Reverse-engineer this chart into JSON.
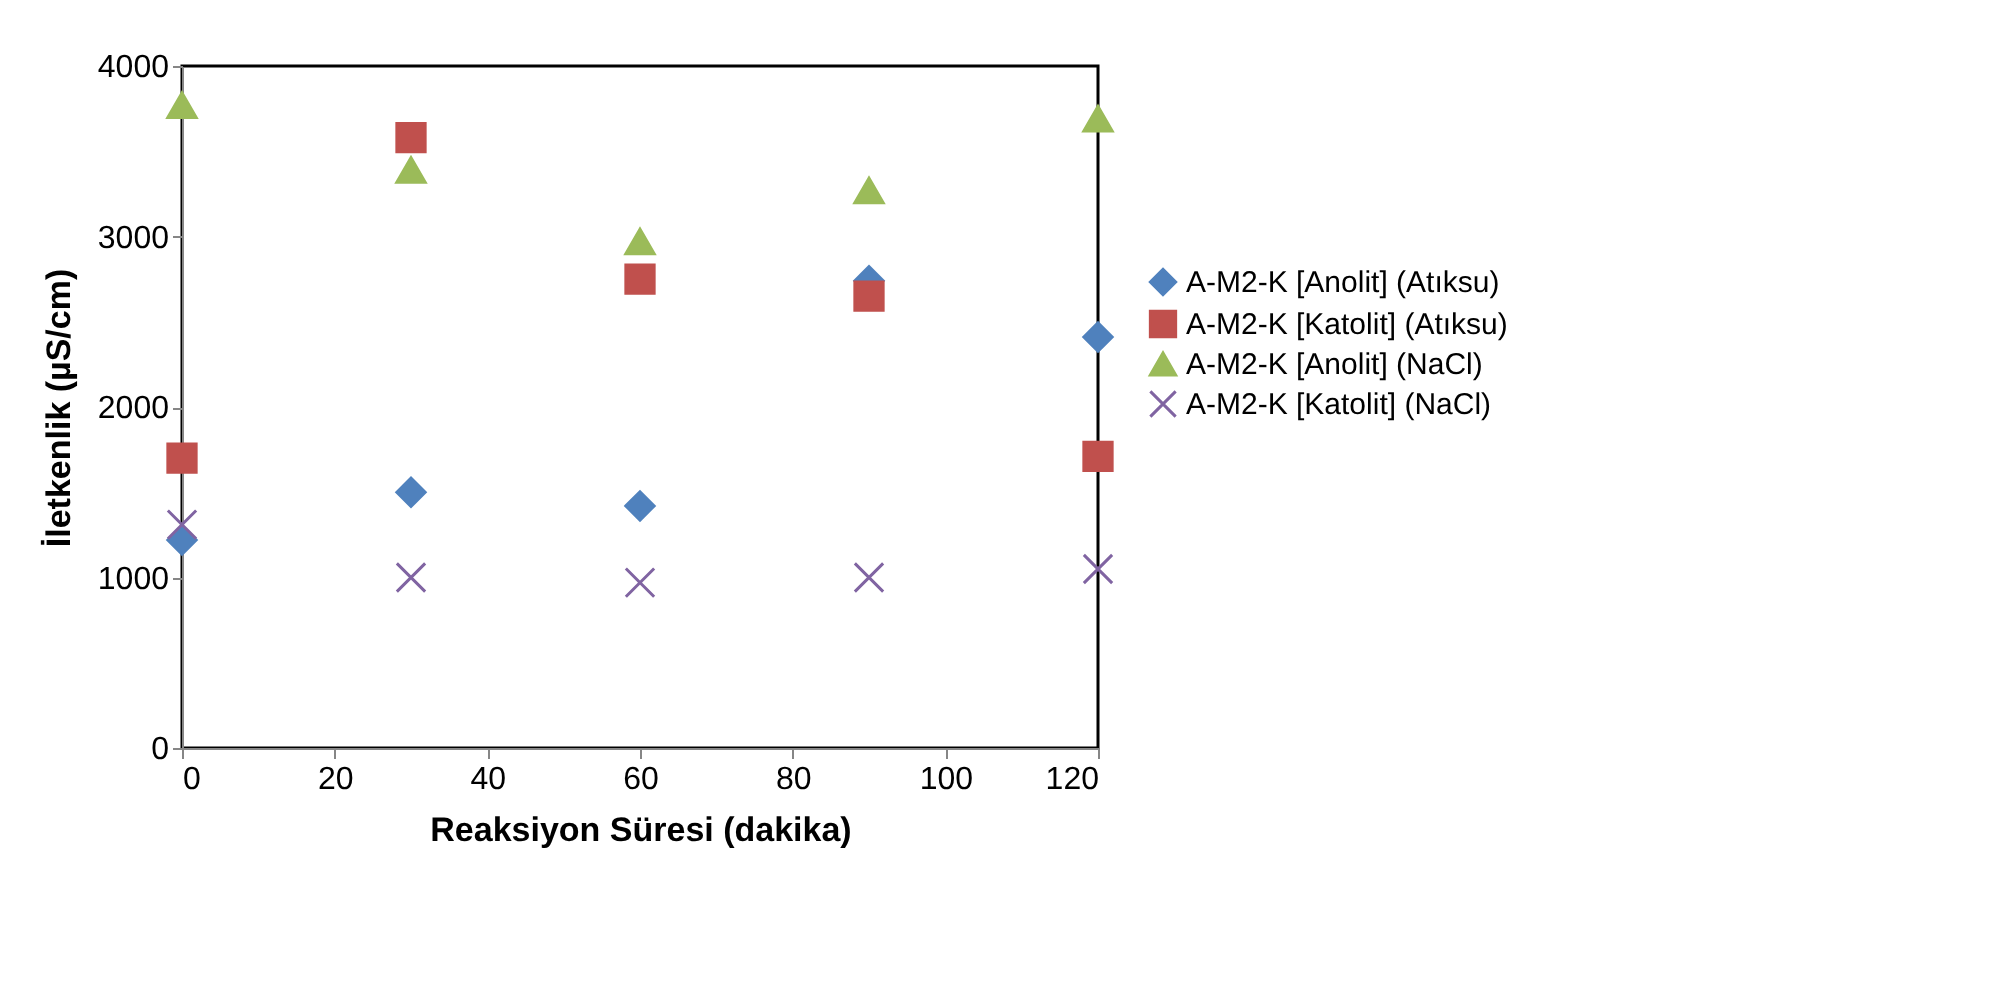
{
  "chart_data": {
    "type": "scatter",
    "xlabel": "Reaksiyon Süresi (dakika)",
    "ylabel": "İletkenlik (µS/cm)",
    "x": [
      0,
      30,
      60,
      90,
      120
    ],
    "xlim": [
      0,
      120
    ],
    "xticks": [
      0,
      20,
      40,
      60,
      80,
      100,
      120
    ],
    "ylim": [
      0,
      4000
    ],
    "yticks": [
      0,
      1000,
      2000,
      3000,
      4000
    ],
    "grid": false,
    "legend": "right",
    "series": [
      {
        "name": "A-M2-K [Anolit] (Atıksu)",
        "color": "#4f81bd",
        "marker": "diamond",
        "values": [
          1220,
          1500,
          1420,
          2740,
          2410
        ]
      },
      {
        "name": "A-M2-K [Katolit] (Atıksu)",
        "color": "#c0504d",
        "marker": "square",
        "values": [
          1700,
          3580,
          2750,
          2650,
          1710
        ]
      },
      {
        "name": "A-M2-K [Anolit] (NaCl)",
        "color": "#9bbb59",
        "marker": "triangle",
        "values": [
          3770,
          3390,
          2970,
          3270,
          3690
        ]
      },
      {
        "name": "A-M2-K [Katolit] (NaCl)",
        "color": "#8064a2",
        "marker": "cross",
        "values": [
          1310,
          1000,
          970,
          1000,
          1050
        ]
      }
    ]
  }
}
